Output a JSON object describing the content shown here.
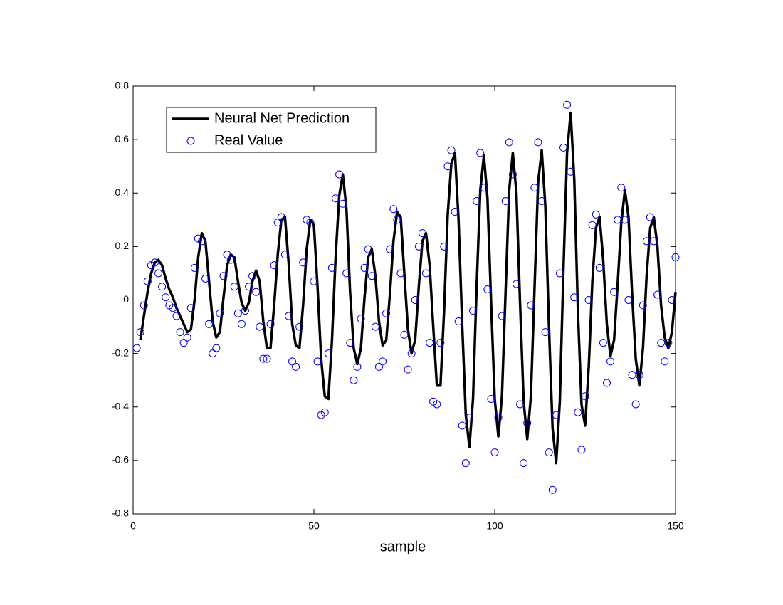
{
  "chart_data": {
    "type": "line",
    "xlabel": "sample",
    "xlim": [
      0,
      150
    ],
    "ylim": [
      -0.8,
      0.8
    ],
    "xticks": [
      0,
      50,
      100,
      150
    ],
    "yticks": [
      -0.8,
      -0.6,
      -0.4,
      -0.2,
      0,
      0.2,
      0.4,
      0.6,
      0.8
    ],
    "legend": "upper left",
    "series": [
      {
        "name": "Neural Net Prediction",
        "type": "line",
        "color": "#000000",
        "x": [
          2,
          3,
          4,
          5,
          6,
          7,
          8,
          9,
          10,
          11,
          12,
          13,
          14,
          15,
          16,
          17,
          18,
          19,
          20,
          21,
          22,
          23,
          24,
          25,
          26,
          27,
          28,
          29,
          30,
          31,
          32,
          33,
          34,
          35,
          36,
          37,
          38,
          39,
          40,
          41,
          42,
          43,
          44,
          45,
          46,
          47,
          48,
          49,
          50,
          51,
          52,
          53,
          54,
          55,
          56,
          57,
          58,
          59,
          60,
          61,
          62,
          63,
          64,
          65,
          66,
          67,
          68,
          69,
          70,
          71,
          72,
          73,
          74,
          75,
          76,
          77,
          78,
          79,
          80,
          81,
          82,
          83,
          84,
          85,
          86,
          87,
          88,
          89,
          90,
          91,
          92,
          93,
          94,
          95,
          96,
          97,
          98,
          99,
          100,
          101,
          102,
          103,
          104,
          105,
          106,
          107,
          108,
          109,
          110,
          111,
          112,
          113,
          114,
          115,
          116,
          117,
          118,
          119,
          120,
          121,
          122,
          123,
          124,
          125,
          126,
          127,
          128,
          129,
          130,
          131,
          132,
          133,
          134,
          135,
          136,
          137,
          138,
          139,
          140,
          141,
          142,
          143,
          144,
          145,
          146,
          147,
          148,
          149,
          150
        ],
        "values": [
          -0.15,
          -0.06,
          0.03,
          0.1,
          0.14,
          0.15,
          0.13,
          0.08,
          0.04,
          0.01,
          -0.03,
          -0.06,
          -0.09,
          -0.12,
          -0.11,
          0.0,
          0.16,
          0.25,
          0.22,
          0.07,
          -0.08,
          -0.14,
          -0.12,
          0.01,
          0.13,
          0.17,
          0.16,
          0.07,
          -0.01,
          -0.04,
          -0.01,
          0.07,
          0.11,
          0.07,
          -0.08,
          -0.18,
          -0.18,
          -0.02,
          0.17,
          0.3,
          0.31,
          0.14,
          -0.09,
          -0.17,
          -0.18,
          -0.02,
          0.19,
          0.3,
          0.28,
          0.05,
          -0.22,
          -0.36,
          -0.37,
          -0.15,
          0.16,
          0.39,
          0.47,
          0.34,
          0.03,
          -0.18,
          -0.24,
          -0.18,
          0.01,
          0.16,
          0.19,
          0.09,
          -0.08,
          -0.17,
          -0.15,
          0.02,
          0.22,
          0.33,
          0.31,
          0.1,
          -0.11,
          -0.2,
          -0.15,
          0.05,
          0.22,
          0.25,
          0.13,
          -0.1,
          -0.32,
          -0.32,
          -0.04,
          0.32,
          0.51,
          0.55,
          0.3,
          -0.09,
          -0.43,
          -0.55,
          -0.37,
          0.05,
          0.41,
          0.54,
          0.38,
          -0.01,
          -0.37,
          -0.51,
          -0.36,
          0.03,
          0.41,
          0.55,
          0.4,
          -0.01,
          -0.38,
          -0.52,
          -0.36,
          0.04,
          0.44,
          0.56,
          0.35,
          -0.1,
          -0.48,
          -0.61,
          -0.38,
          0.11,
          0.55,
          0.7,
          0.45,
          -0.04,
          -0.39,
          -0.47,
          -0.25,
          0.07,
          0.27,
          0.31,
          0.15,
          -0.09,
          -0.21,
          -0.15,
          0.06,
          0.29,
          0.41,
          0.31,
          0.02,
          -0.22,
          -0.32,
          -0.18,
          0.09,
          0.27,
          0.31,
          0.2,
          -0.02,
          -0.14,
          -0.18,
          -0.12,
          0.03
        ]
      },
      {
        "name": "Real Value",
        "type": "scatter",
        "color": "#0000ff",
        "x": [
          1,
          2,
          3,
          4,
          5,
          6,
          7,
          8,
          9,
          10,
          11,
          12,
          13,
          14,
          15,
          16,
          17,
          18,
          19,
          20,
          21,
          22,
          23,
          24,
          25,
          26,
          27,
          28,
          29,
          30,
          31,
          32,
          33,
          34,
          35,
          36,
          37,
          38,
          39,
          40,
          41,
          42,
          43,
          44,
          45,
          46,
          47,
          48,
          49,
          50,
          51,
          52,
          53,
          54,
          55,
          56,
          57,
          58,
          59,
          60,
          61,
          62,
          63,
          64,
          65,
          66,
          67,
          68,
          69,
          70,
          71,
          72,
          73,
          74,
          75,
          76,
          77,
          78,
          79,
          80,
          81,
          82,
          83,
          84,
          85,
          86,
          87,
          88,
          89,
          90,
          91,
          92,
          93,
          94,
          95,
          96,
          97,
          98,
          99,
          100,
          101,
          102,
          103,
          104,
          105,
          106,
          107,
          108,
          109,
          110,
          111,
          112,
          113,
          114,
          115,
          116,
          117,
          118,
          119,
          120,
          121,
          122,
          123,
          124,
          125,
          126,
          127,
          128,
          129,
          130,
          131,
          132,
          133,
          134,
          135,
          136,
          137,
          138,
          139,
          140,
          141,
          142,
          143,
          144,
          145,
          146,
          147,
          148,
          149,
          150
        ],
        "values": [
          -0.18,
          -0.12,
          -0.02,
          0.07,
          0.13,
          0.14,
          0.1,
          0.05,
          0.01,
          -0.02,
          -0.03,
          -0.06,
          -0.12,
          -0.16,
          -0.14,
          -0.03,
          0.12,
          0.23,
          0.22,
          0.08,
          -0.09,
          -0.2,
          -0.18,
          -0.05,
          0.09,
          0.17,
          0.15,
          0.05,
          -0.05,
          -0.09,
          -0.04,
          0.05,
          0.09,
          0.03,
          -0.1,
          -0.22,
          -0.22,
          -0.09,
          0.13,
          0.29,
          0.31,
          0.17,
          -0.06,
          -0.23,
          -0.25,
          -0.1,
          0.14,
          0.3,
          0.29,
          0.07,
          -0.23,
          -0.43,
          -0.42,
          -0.2,
          0.12,
          0.38,
          0.47,
          0.36,
          0.1,
          -0.16,
          -0.3,
          -0.25,
          -0.07,
          0.12,
          0.19,
          0.09,
          -0.1,
          -0.25,
          -0.23,
          -0.05,
          0.19,
          0.34,
          0.3,
          0.1,
          -0.13,
          -0.26,
          -0.2,
          0.0,
          0.2,
          0.25,
          0.1,
          -0.16,
          -0.38,
          -0.39,
          -0.16,
          0.2,
          0.5,
          0.56,
          0.33,
          -0.08,
          -0.47,
          -0.61,
          -0.44,
          -0.04,
          0.37,
          0.55,
          0.42,
          0.04,
          -0.37,
          -0.57,
          -0.44,
          -0.06,
          0.37,
          0.59,
          0.47,
          0.06,
          -0.39,
          -0.61,
          -0.46,
          -0.02,
          0.42,
          0.59,
          0.37,
          -0.12,
          -0.57,
          -0.71,
          -0.43,
          0.1,
          0.57,
          0.73,
          0.48,
          0.01,
          -0.42,
          -0.56,
          -0.36,
          0.0,
          0.28,
          0.32,
          0.12,
          -0.16,
          -0.31,
          -0.23,
          0.03,
          0.3,
          0.42,
          0.3,
          0.0,
          -0.28,
          -0.39,
          -0.28,
          -0.02,
          0.22,
          0.31,
          0.22,
          0.02,
          -0.16,
          -0.23,
          -0.16,
          0.0,
          0.16
        ]
      }
    ]
  }
}
